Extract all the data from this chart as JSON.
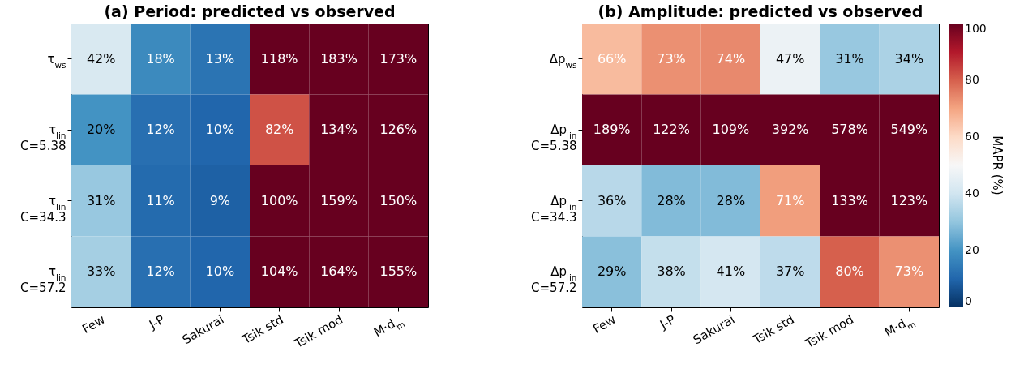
{
  "chart_data": [
    {
      "type": "heatmap",
      "title": "(a)  Period: predicted vs observed",
      "categories": [
        "Few",
        "J-P",
        "Sakurai",
        "Tsik std",
        "Tsik mod",
        "M·d$_{m}$"
      ],
      "y_categories": [
        "τ$_{ws}$",
        "τ$_{lin}$\nC=5.38",
        "τ$_{lin}$\nC=34.3",
        "τ$_{lin}$\nC=57.2"
      ],
      "cells": [
        [
          42,
          18,
          13,
          118,
          183,
          173
        ],
        [
          20,
          12,
          10,
          82,
          134,
          126
        ],
        [
          31,
          11,
          9,
          100,
          159,
          150
        ],
        [
          33,
          12,
          10,
          104,
          164,
          155
        ]
      ],
      "cell_labels": [
        [
          "42%",
          "18%",
          "13%",
          "118%",
          "183%",
          "173%"
        ],
        [
          "20%",
          "12%",
          "10%",
          "82%",
          "134%",
          "126%"
        ],
        [
          "31%",
          "11%",
          "9%",
          "100%",
          "159%",
          "150%"
        ],
        [
          "33%",
          "12%",
          "10%",
          "104%",
          "164%",
          "155%"
        ]
      ]
    },
    {
      "type": "heatmap",
      "title": "(b)  Amplitude: predicted vs observed",
      "categories": [
        "Few",
        "J-P",
        "Sakurai",
        "Tsik std",
        "Tsik mod",
        "M·d$_{m}$"
      ],
      "y_categories": [
        "Δp$_{ws}$",
        "Δp$_{lin}$\nC=5.38",
        "Δp$_{lin}$\nC=34.3",
        "Δp$_{lin}$\nC=57.2"
      ],
      "cells": [
        [
          66,
          73,
          74,
          47,
          31,
          34
        ],
        [
          189,
          122,
          109,
          392,
          578,
          549
        ],
        [
          36,
          28,
          28,
          71,
          133,
          123
        ],
        [
          29,
          38,
          41,
          37,
          80,
          73
        ]
      ],
      "cell_labels": [
        [
          "66%",
          "73%",
          "74%",
          "47%",
          "31%",
          "34%"
        ],
        [
          "189%",
          "122%",
          "109%",
          "392%",
          "578%",
          "549%"
        ],
        [
          "36%",
          "28%",
          "28%",
          "71%",
          "133%",
          "123%"
        ],
        [
          "29%",
          "38%",
          "41%",
          "37%",
          "80%",
          "73%"
        ]
      ],
      "clim": [
        0,
        100
      ],
      "cticks": [
        0,
        20,
        40,
        60,
        80,
        100
      ],
      "clabel": "MAPR (%)"
    }
  ]
}
